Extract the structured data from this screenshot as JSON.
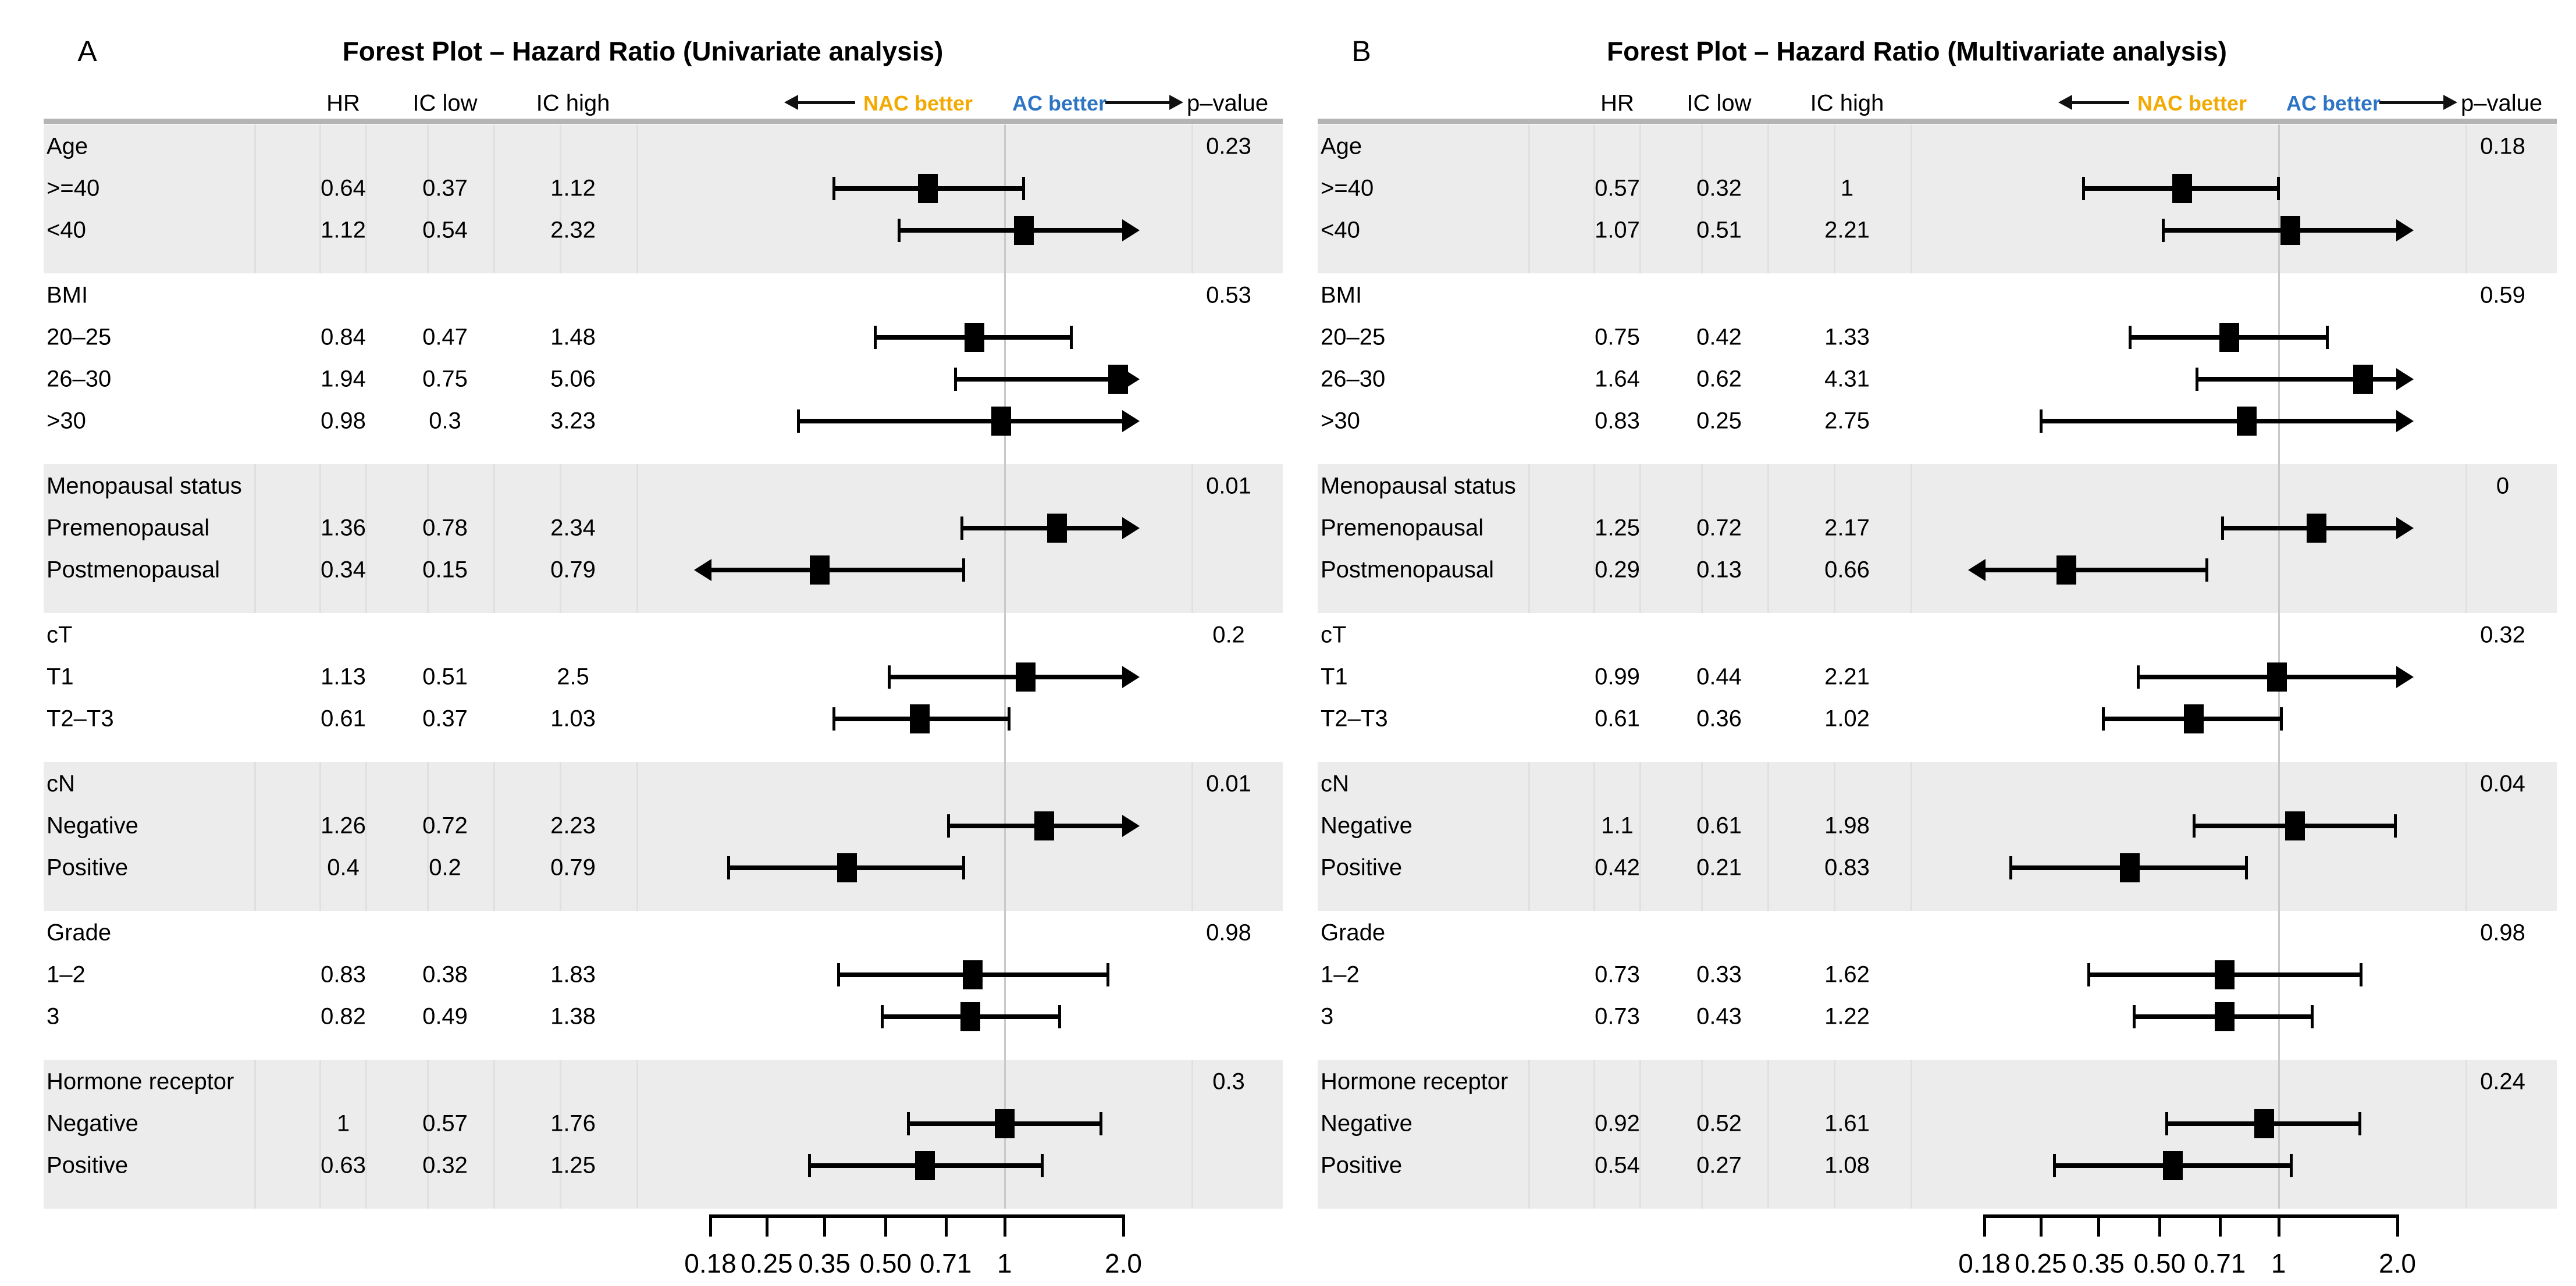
{
  "figure_title": "Forest Plot – Hazard Ratio",
  "colors": {
    "nac_better": "#F2A900",
    "ac_better": "#2D74C4",
    "band": "#ececec",
    "marker": "#000000",
    "reference_line": "#c9c9c9"
  },
  "chart_data": [
    {
      "type": "scatter",
      "subtype": "forest-plot",
      "key": "A",
      "title": "Forest Plot – Hazard Ratio (Univariate analysis)",
      "columns": [
        "HR",
        "IC low",
        "IC high"
      ],
      "p_header": "p–value",
      "left_label": "NAC better",
      "right_label": "AC better",
      "xaxis": {
        "scale": "log",
        "min": 0.18,
        "max": 2.0,
        "ref_line": 1,
        "ticks": [
          0.18,
          0.25,
          0.35,
          0.5,
          0.71,
          1,
          2
        ],
        "tick_labels": [
          "0.18",
          "0.25",
          "0.35",
          "0.50",
          "0.71",
          "1",
          "2.0"
        ]
      },
      "groups": [
        {
          "label": "Age",
          "p": "0.23",
          "shaded": true,
          "rows": [
            {
              "label": ">=40",
              "hr": 0.64,
              "lo": 0.37,
              "hi": 1.12
            },
            {
              "label": "<40",
              "hr": 1.12,
              "lo": 0.54,
              "hi": 2.32
            }
          ]
        },
        {
          "label": "BMI",
          "p": "0.53",
          "shaded": false,
          "rows": [
            {
              "label": "20–25",
              "hr": 0.84,
              "lo": 0.47,
              "hi": 1.48
            },
            {
              "label": "26–30",
              "hr": 1.94,
              "lo": 0.75,
              "hi": 5.06
            },
            {
              "label": ">30",
              "hr": 0.98,
              "lo": 0.3,
              "hi": 3.23
            }
          ]
        },
        {
          "label": "Menopausal status",
          "p": "0.01",
          "shaded": true,
          "rows": [
            {
              "label": "Premenopausal",
              "hr": 1.36,
              "lo": 0.78,
              "hi": 2.34
            },
            {
              "label": "Postmenopausal",
              "hr": 0.34,
              "lo": 0.15,
              "hi": 0.79
            }
          ]
        },
        {
          "label": "cT",
          "p": "0.2",
          "shaded": false,
          "rows": [
            {
              "label": "T1",
              "hr": 1.13,
              "lo": 0.51,
              "hi": 2.5
            },
            {
              "label": "T2–T3",
              "hr": 0.61,
              "lo": 0.37,
              "hi": 1.03
            }
          ]
        },
        {
          "label": "cN",
          "p": "0.01",
          "shaded": true,
          "rows": [
            {
              "label": "Negative",
              "hr": 1.26,
              "lo": 0.72,
              "hi": 2.23
            },
            {
              "label": "Positive",
              "hr": 0.4,
              "lo": 0.2,
              "hi": 0.79
            }
          ]
        },
        {
          "label": "Grade",
          "p": "0.98",
          "shaded": false,
          "rows": [
            {
              "label": "1–2",
              "hr": 0.83,
              "lo": 0.38,
              "hi": 1.83
            },
            {
              "label": "3",
              "hr": 0.82,
              "lo": 0.49,
              "hi": 1.38
            }
          ]
        },
        {
          "label": "Hormone receptor",
          "p": "0.3",
          "shaded": true,
          "rows": [
            {
              "label": "Negative",
              "hr": 1,
              "lo": 0.57,
              "hi": 1.76
            },
            {
              "label": "Positive",
              "hr": 0.63,
              "lo": 0.32,
              "hi": 1.25
            }
          ]
        }
      ]
    },
    {
      "type": "scatter",
      "subtype": "forest-plot",
      "key": "B",
      "title": "Forest Plot – Hazard Ratio (Multivariate analysis)",
      "columns": [
        "HR",
        "IC low",
        "IC high"
      ],
      "p_header": "p–value",
      "left_label": "NAC better",
      "right_label": "AC better",
      "xaxis": {
        "scale": "log",
        "min": 0.18,
        "max": 2.0,
        "ref_line": 1,
        "ticks": [
          0.18,
          0.25,
          0.35,
          0.5,
          0.71,
          1,
          2
        ],
        "tick_labels": [
          "0.18",
          "0.25",
          "0.35",
          "0.50",
          "0.71",
          "1",
          "2.0"
        ]
      },
      "groups": [
        {
          "label": "Age",
          "p": "0.18",
          "shaded": true,
          "rows": [
            {
              "label": ">=40",
              "hr": 0.57,
              "lo": 0.32,
              "hi": 1
            },
            {
              "label": "<40",
              "hr": 1.07,
              "lo": 0.51,
              "hi": 2.21
            }
          ]
        },
        {
          "label": "BMI",
          "p": "0.59",
          "shaded": false,
          "rows": [
            {
              "label": "20–25",
              "hr": 0.75,
              "lo": 0.42,
              "hi": 1.33
            },
            {
              "label": "26–30",
              "hr": 1.64,
              "lo": 0.62,
              "hi": 4.31
            },
            {
              "label": ">30",
              "hr": 0.83,
              "lo": 0.25,
              "hi": 2.75
            }
          ]
        },
        {
          "label": "Menopausal status",
          "p": "0",
          "shaded": true,
          "rows": [
            {
              "label": "Premenopausal",
              "hr": 1.25,
              "lo": 0.72,
              "hi": 2.17
            },
            {
              "label": "Postmenopausal",
              "hr": 0.29,
              "lo": 0.13,
              "hi": 0.66
            }
          ]
        },
        {
          "label": "cT",
          "p": "0.32",
          "shaded": false,
          "rows": [
            {
              "label": "T1",
              "hr": 0.99,
              "lo": 0.44,
              "hi": 2.21
            },
            {
              "label": "T2–T3",
              "hr": 0.61,
              "lo": 0.36,
              "hi": 1.02
            }
          ]
        },
        {
          "label": "cN",
          "p": "0.04",
          "shaded": true,
          "rows": [
            {
              "label": "Negative",
              "hr": 1.1,
              "lo": 0.61,
              "hi": 1.98
            },
            {
              "label": "Positive",
              "hr": 0.42,
              "lo": 0.21,
              "hi": 0.83
            }
          ]
        },
        {
          "label": "Grade",
          "p": "0.98",
          "shaded": false,
          "rows": [
            {
              "label": "1–2",
              "hr": 0.73,
              "lo": 0.33,
              "hi": 1.62
            },
            {
              "label": "3",
              "hr": 0.73,
              "lo": 0.43,
              "hi": 1.22
            }
          ]
        },
        {
          "label": "Hormone receptor",
          "p": "0.24",
          "shaded": true,
          "rows": [
            {
              "label": "Negative",
              "hr": 0.92,
              "lo": 0.52,
              "hi": 1.61
            },
            {
              "label": "Positive",
              "hr": 0.54,
              "lo": 0.27,
              "hi": 1.08
            }
          ]
        }
      ]
    }
  ]
}
